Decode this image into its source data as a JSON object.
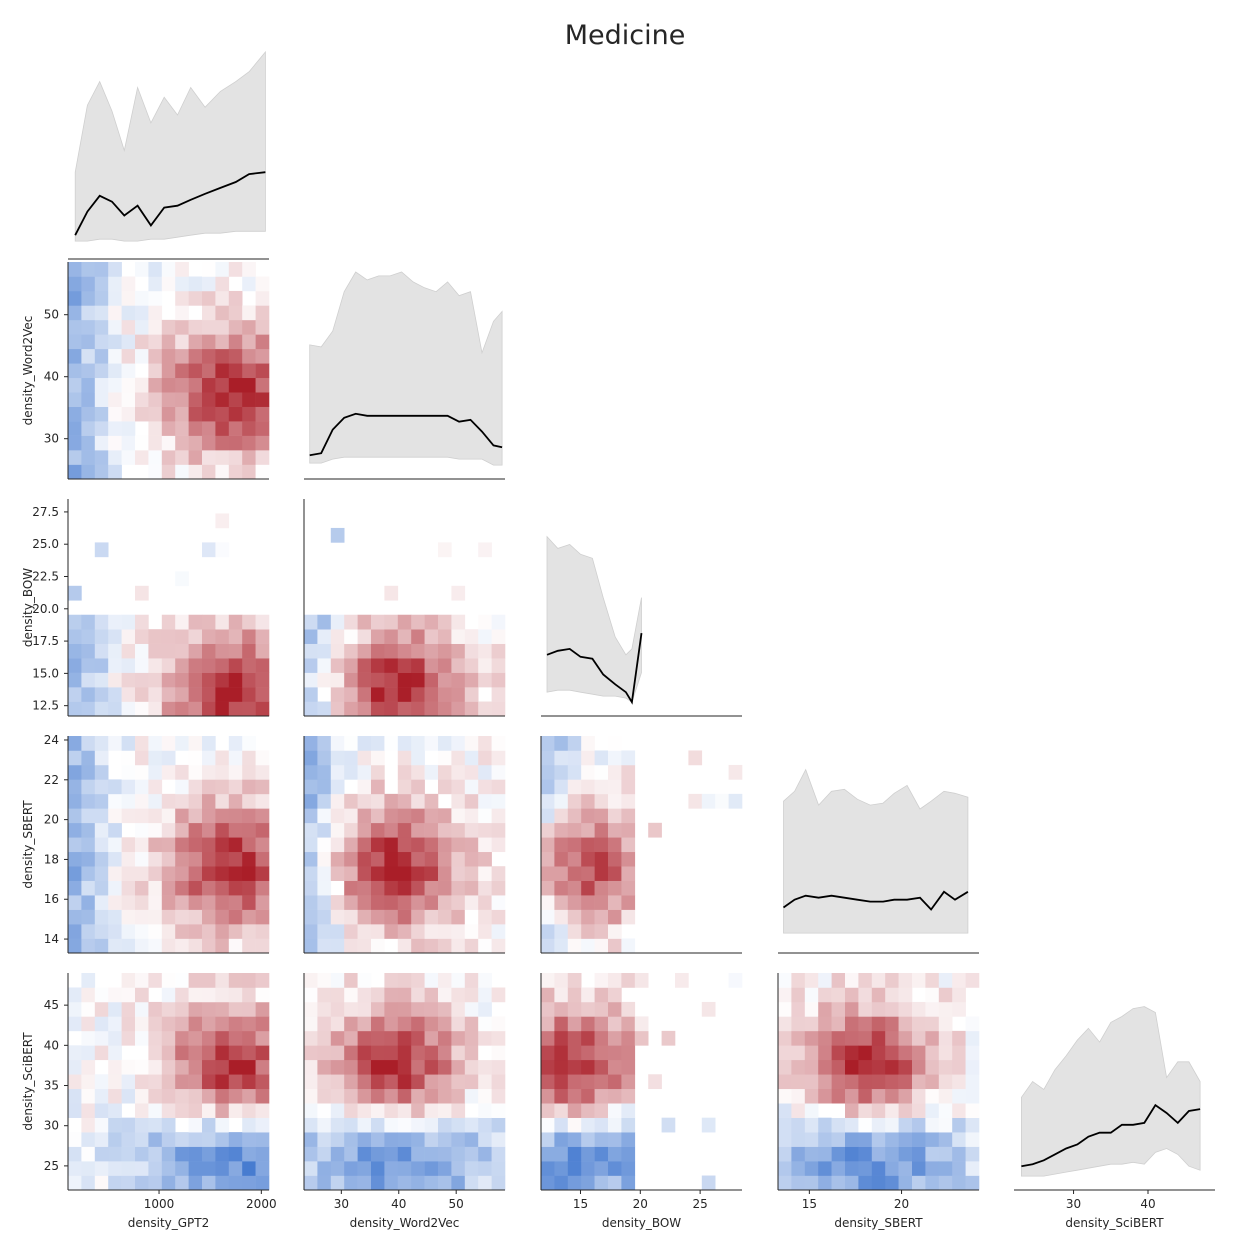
{
  "chart_data": {
    "type": "heatmap",
    "title": "Medicine",
    "layout": "corner pair grid: diagonal = mean line with grey min-max band, lower triangle = 2D histograms (blue-white-red diverging)",
    "variables": [
      {
        "name": "density_GPT2",
        "range": [
          110,
          2075
        ],
        "ticks": [
          1000,
          2000
        ],
        "tick_labels": [
          "1000",
          "2000"
        ]
      },
      {
        "name": "density_Word2Vec",
        "range": [
          23.5,
          58.5
        ],
        "ticks": [
          30,
          40,
          50
        ],
        "tick_labels": [
          "30",
          "40",
          "50"
        ]
      },
      {
        "name": "density_BOW",
        "range": [
          11.7,
          28.5
        ],
        "ticks": [
          12.5,
          15.0,
          17.5,
          20.0,
          22.5,
          25.0,
          27.5
        ],
        "tick_labels": [
          "12.5",
          "15.0",
          "17.5",
          "20.0",
          "22.5",
          "25.0",
          "27.5"
        ],
        "x_ticks": [
          15,
          20,
          25
        ],
        "x_tick_labels": [
          "15",
          "20",
          "25"
        ]
      },
      {
        "name": "density_SBERT",
        "range": [
          13.3,
          24.2
        ],
        "ticks": [
          14,
          16,
          18,
          20,
          22,
          24
        ],
        "tick_labels": [
          "14",
          "16",
          "18",
          "20",
          "22",
          "24"
        ],
        "x_ticks": [
          15,
          20
        ],
        "x_tick_labels": [
          "15",
          "20"
        ]
      },
      {
        "name": "density_SciBERT",
        "range": [
          22,
          49
        ],
        "ticks": [
          25,
          30,
          35,
          40,
          45
        ],
        "tick_labels": [
          "25",
          "30",
          "35",
          "40",
          "45"
        ],
        "x_ticks": [
          30,
          40
        ],
        "x_tick_labels": [
          "30",
          "40"
        ]
      }
    ],
    "diagonal": [
      {
        "variable": "density_GPT2",
        "x": [
          180,
          300,
          420,
          540,
          660,
          790,
          920,
          1050,
          1180,
          1310,
          1450,
          1600,
          1750,
          1880,
          2040
        ],
        "mean": [
          0.07,
          0.19,
          0.27,
          0.24,
          0.17,
          0.22,
          0.12,
          0.21,
          0.22,
          0.25,
          0.28,
          0.31,
          0.34,
          0.38,
          0.39
        ],
        "min": [
          0.04,
          0.04,
          0.05,
          0.05,
          0.04,
          0.04,
          0.05,
          0.05,
          0.06,
          0.07,
          0.08,
          0.08,
          0.09,
          0.09,
          0.09
        ],
        "max": [
          0.39,
          0.73,
          0.85,
          0.7,
          0.5,
          0.82,
          0.64,
          0.77,
          0.68,
          0.82,
          0.72,
          0.8,
          0.85,
          0.9,
          1.0
        ]
      },
      {
        "variable": "density_Word2Vec",
        "x": [
          24.5,
          26.5,
          28.5,
          30.5,
          32.5,
          34.5,
          36.5,
          38.5,
          40.5,
          42.5,
          44.5,
          46.5,
          48.5,
          50.5,
          52.5,
          54.5,
          56.5,
          58.0
        ],
        "mean": [
          0.07,
          0.08,
          0.2,
          0.26,
          0.28,
          0.27,
          0.27,
          0.27,
          0.27,
          0.27,
          0.27,
          0.27,
          0.27,
          0.24,
          0.25,
          0.19,
          0.12,
          0.11
        ],
        "min": [
          0.03,
          0.03,
          0.05,
          0.06,
          0.06,
          0.06,
          0.06,
          0.06,
          0.06,
          0.06,
          0.06,
          0.06,
          0.06,
          0.05,
          0.05,
          0.05,
          0.02,
          0.02
        ],
        "max": [
          0.63,
          0.62,
          0.7,
          0.9,
          1.0,
          0.96,
          0.98,
          0.98,
          1.0,
          0.95,
          0.92,
          0.9,
          0.95,
          0.88,
          0.9,
          0.59,
          0.75,
          0.8
        ]
      },
      {
        "variable": "density_BOW",
        "x": [
          12.2,
          13.1,
          14.1,
          15.0,
          16.0,
          16.9,
          17.9,
          18.8,
          19.3,
          20.1
        ],
        "mean": [
          0.26,
          0.28,
          0.29,
          0.25,
          0.24,
          0.16,
          0.11,
          0.07,
          0.02,
          0.37
        ],
        "min": [
          0.07,
          0.08,
          0.08,
          0.07,
          0.06,
          0.05,
          0.05,
          0.04,
          0.02,
          0.17
        ],
        "max": [
          0.86,
          0.8,
          0.82,
          0.77,
          0.75,
          0.55,
          0.35,
          0.26,
          0.29,
          0.55
        ]
      },
      {
        "variable": "density_SBERT",
        "x": [
          13.6,
          14.2,
          14.8,
          15.5,
          16.2,
          16.9,
          17.6,
          18.3,
          19.0,
          19.6,
          20.3,
          21.0,
          21.6,
          22.3,
          22.9,
          23.6
        ],
        "mean": [
          0.18,
          0.22,
          0.24,
          0.23,
          0.24,
          0.23,
          0.22,
          0.21,
          0.21,
          0.22,
          0.22,
          0.23,
          0.17,
          0.26,
          0.22,
          0.26
        ],
        "min": [
          0.05,
          0.05,
          0.05,
          0.05,
          0.05,
          0.05,
          0.05,
          0.05,
          0.05,
          0.05,
          0.05,
          0.05,
          0.05,
          0.05,
          0.05,
          0.05
        ],
        "max": [
          0.72,
          0.77,
          0.88,
          0.7,
          0.77,
          0.78,
          0.73,
          0.7,
          0.71,
          0.76,
          0.8,
          0.68,
          0.72,
          0.77,
          0.76,
          0.74
        ]
      },
      {
        "variable": "density_SciBERT",
        "x": [
          23.0,
          24.5,
          26.0,
          27.5,
          29.0,
          30.5,
          32.0,
          33.5,
          35.0,
          36.5,
          38.0,
          39.5,
          41.0,
          42.5,
          44.0,
          45.5,
          47.0
        ],
        "mean": [
          0.07,
          0.08,
          0.1,
          0.13,
          0.16,
          0.18,
          0.22,
          0.24,
          0.24,
          0.28,
          0.28,
          0.29,
          0.38,
          0.34,
          0.29,
          0.35,
          0.36
        ],
        "min": [
          0.02,
          0.02,
          0.02,
          0.03,
          0.04,
          0.05,
          0.06,
          0.07,
          0.08,
          0.08,
          0.09,
          0.08,
          0.14,
          0.16,
          0.13,
          0.07,
          0.05
        ],
        "max": [
          0.42,
          0.5,
          0.46,
          0.56,
          0.63,
          0.71,
          0.77,
          0.7,
          0.8,
          0.83,
          0.87,
          0.88,
          0.85,
          0.52,
          0.6,
          0.6,
          0.5
        ]
      }
    ]
  }
}
